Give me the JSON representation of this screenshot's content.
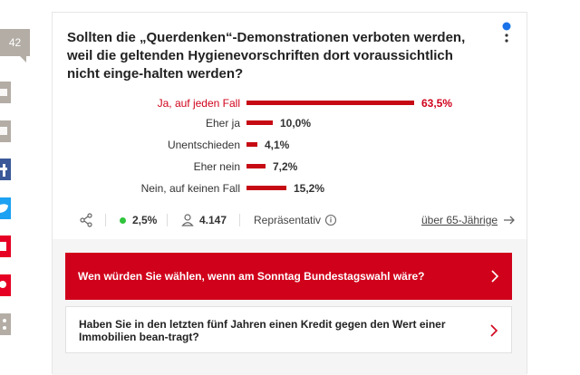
{
  "share_rail": {
    "count": "42",
    "buttons": [
      "print-icon",
      "comment-icon",
      "facebook-icon",
      "twitter-icon",
      "flipboard-icon",
      "pinterest-icon",
      "share-more-icon"
    ],
    "colors": {
      "gray": "#b3ada5",
      "facebook": "#3b5998",
      "twitter": "#1da1f2",
      "pinterest": "#e60023"
    }
  },
  "poll": {
    "question": "Sollten die „Querdenken“-Demonstrationen verboten werden, weil die geltenden Hygienevorschriften dort voraussichtlich nicht einge-halten werden?",
    "answers": [
      {
        "label": "Ja, auf jeden Fall",
        "value": "63,5%",
        "percent": 63.5,
        "highlight": true
      },
      {
        "label": "Eher ja",
        "value": "10,0%",
        "percent": 10.0,
        "highlight": false
      },
      {
        "label": "Unentschieden",
        "value": "4,1%",
        "percent": 4.1,
        "highlight": false
      },
      {
        "label": "Eher nein",
        "value": "7,2%",
        "percent": 7.2,
        "highlight": false
      },
      {
        "label": "Nein, auf keinen Fall",
        "value": "15,2%",
        "percent": 15.2,
        "highlight": false
      }
    ],
    "bar_color": "#c60a14",
    "accent_color": "#d0021b",
    "stats": {
      "error_margin": "2,5%",
      "participants": "4.147",
      "representative_label": "Repräsentativ",
      "filter_link": "über 65-Jährige"
    }
  },
  "banners": [
    {
      "text": "Wen würden Sie wählen, wenn am Sonntag Bundestagswahl wäre?",
      "style": "red"
    },
    {
      "text": "Haben Sie in den letzten fünf Jahren einen Kredit gegen den Wert einer Immobilien bean-tragt?",
      "style": "white"
    }
  ]
}
